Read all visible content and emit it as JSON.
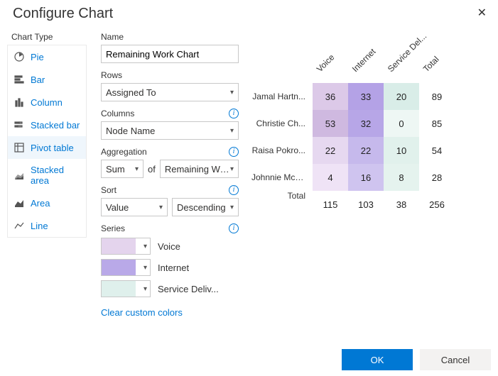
{
  "dialog": {
    "title": "Configure Chart",
    "close_icon": "✕"
  },
  "sidebar": {
    "title": "Chart Type",
    "items": [
      {
        "label": "Pie",
        "icon": "pie"
      },
      {
        "label": "Bar",
        "icon": "bar-h"
      },
      {
        "label": "Column",
        "icon": "column"
      },
      {
        "label": "Stacked bar",
        "icon": "stacked-bar"
      },
      {
        "label": "Pivot table",
        "icon": "pivot",
        "selected": true
      },
      {
        "label": "Stacked area",
        "icon": "stacked-area"
      },
      {
        "label": "Area",
        "icon": "area"
      },
      {
        "label": "Line",
        "icon": "line"
      }
    ]
  },
  "form": {
    "name_label": "Name",
    "name_value": "Remaining Work Chart",
    "rows_label": "Rows",
    "rows_value": "Assigned To",
    "columns_label": "Columns",
    "columns_value": "Node Name",
    "aggregation_label": "Aggregation",
    "agg_func": "Sum",
    "agg_of": "of",
    "agg_field": "Remaining Work",
    "sort_label": "Sort",
    "sort_by": "Value",
    "sort_dir": "Descending",
    "series_label": "Series",
    "series": [
      {
        "label": "Voice",
        "color": "#e4d4ed"
      },
      {
        "label": "Internet",
        "color": "#b9a9e8"
      },
      {
        "label": "Service Deliv...",
        "color": "#dff0ec"
      }
    ],
    "clear_link": "Clear custom colors"
  },
  "pivot": {
    "type": "pivot-table",
    "columns": [
      "Voice",
      "Internet",
      "Service Del...",
      "Total"
    ],
    "rows": [
      {
        "label": "Jamal Hartn...",
        "cells": [
          36,
          33,
          20,
          89
        ]
      },
      {
        "label": "Christie Ch...",
        "cells": [
          53,
          32,
          0,
          85
        ]
      },
      {
        "label": "Raisa Pokro...",
        "cells": [
          22,
          22,
          10,
          54
        ]
      },
      {
        "label": "Johnnie McL...",
        "cells": [
          4,
          16,
          8,
          28
        ]
      }
    ],
    "total_row": {
      "label": "Total",
      "cells": [
        115,
        103,
        38,
        256
      ]
    },
    "column_colors": [
      "#dcc9e8",
      "#b9a9e8",
      "#dff0ec",
      null
    ],
    "column_color_alpha": {
      "voice": [
        "#dcc9e8",
        "#cfb9e0",
        "#e6d8f0",
        "#efe3f6"
      ],
      "internet": [
        "#b4a2e6",
        "#b7a6e7",
        "#c6b9ec",
        "#cfc4ef"
      ],
      "service": [
        "#d9ede8",
        "#eef7f4",
        "#e1f1ec",
        "#e5f3ee"
      ]
    },
    "text_color": "#222222",
    "fontsize": 13
  },
  "footer": {
    "ok": "OK",
    "cancel": "Cancel"
  },
  "colors": {
    "link": "#0078d4",
    "primary": "#0078d4",
    "border": "#c8c8c8"
  }
}
